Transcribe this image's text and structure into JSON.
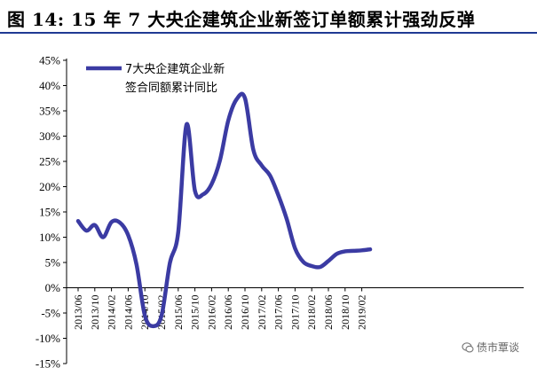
{
  "title": "图 14:  15 年 7 大央企建筑企业新签订单额累计强劲反弹",
  "watermark": "债市覃谈",
  "colors": {
    "line": "#3b3ba3",
    "title_rule": "#1f3a93"
  },
  "chart_data": {
    "type": "line",
    "title": "图 14:  15 年 7 大央企建筑企业新签订单额累计强劲反弹",
    "xlabel": "",
    "ylabel": "",
    "ylim": [
      -15,
      45
    ],
    "yticks": [
      "45%",
      "40%",
      "35%",
      "30%",
      "25%",
      "20%",
      "15%",
      "10%",
      "5%",
      "0%",
      "-5%",
      "-10%",
      "-15%"
    ],
    "xticks": [
      "2013/06",
      "2013/10",
      "2014/02",
      "2014/06",
      "2014/10",
      "2015/02",
      "2015/06",
      "2015/10",
      "2016/02",
      "2016/06",
      "2016/10",
      "2017/02",
      "2017/06",
      "2017/10",
      "2018/02",
      "2018/06",
      "2018/10",
      "2019/02"
    ],
    "legend": {
      "position": "top-left",
      "line1": "7大央企建筑企业新",
      "line2": "签合同额累计同比"
    },
    "grid": false,
    "series": [
      {
        "name": "7大央企建筑企业新签合同额累计同比",
        "x": [
          "2013/06",
          "2013/08",
          "2013/10",
          "2013/12",
          "2014/02",
          "2014/04",
          "2014/06",
          "2014/08",
          "2014/10",
          "2014/12",
          "2015/02",
          "2015/04",
          "2015/06",
          "2015/08",
          "2015/10",
          "2015/12",
          "2016/02",
          "2016/04",
          "2016/06",
          "2016/08",
          "2016/10",
          "2016/12",
          "2017/02",
          "2017/04",
          "2017/06",
          "2017/08",
          "2017/10",
          "2017/12",
          "2018/02",
          "2018/04",
          "2018/06",
          "2018/08",
          "2018/10",
          "2018/12",
          "2019/02",
          "2019/04"
        ],
        "values": [
          13.2,
          11.3,
          12.4,
          10.0,
          13.0,
          12.9,
          10.4,
          4.6,
          -5.5,
          -7.6,
          -5.5,
          4.9,
          11.0,
          32.3,
          19.2,
          18.5,
          20.5,
          25.2,
          33.1,
          37.3,
          37.5,
          27.3,
          24.2,
          22.2,
          18.3,
          13.6,
          7.8,
          5.1,
          4.3,
          4.1,
          5.3,
          6.7,
          7.2,
          7.3,
          7.4,
          7.6
        ]
      }
    ]
  }
}
